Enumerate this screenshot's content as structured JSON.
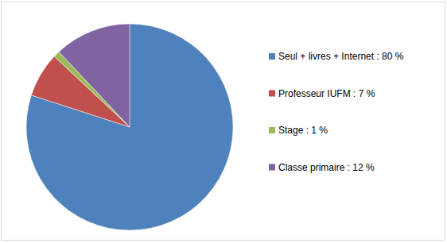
{
  "chart_data": {
    "type": "pie",
    "categories": [
      "Seul + livres + Internet : 80 %",
      "Professeur IUFM : 7 %",
      "Stage : 1 %",
      "Classe primaire : 12 %"
    ],
    "values": [
      80,
      7,
      1,
      12
    ],
    "colors": [
      "#4f81bd",
      "#c0504d",
      "#9bbb59",
      "#8064a2"
    ],
    "legend": "right"
  }
}
